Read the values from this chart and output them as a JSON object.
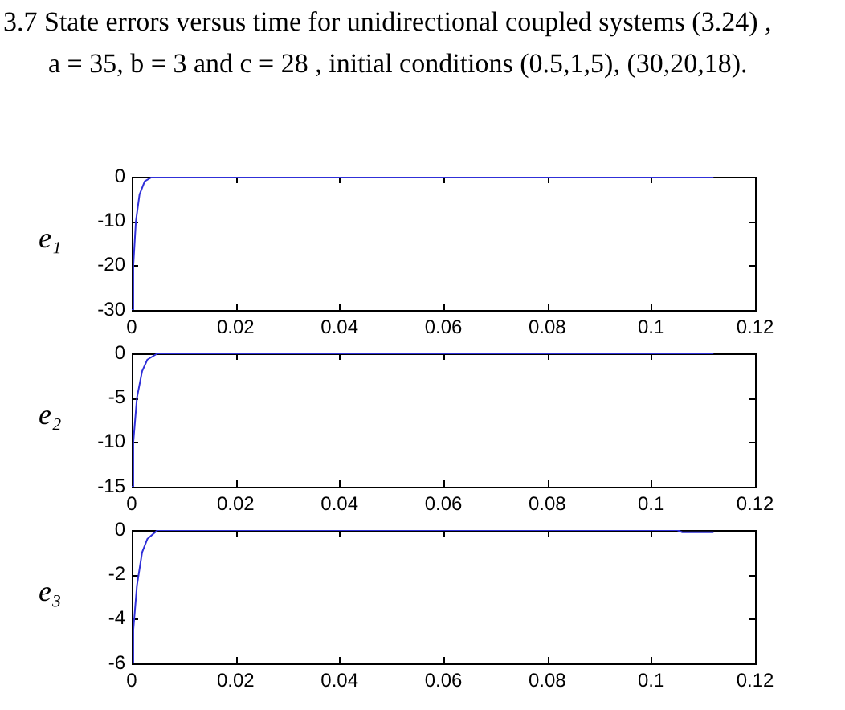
{
  "chart_data": [
    {
      "type": "line",
      "title": "3.7    State errors versus time for unidirectional coupled systems (3.24) ,",
      "subtitle": "a = 35, b = 3   and   c = 28 , initial conditions (0.5,1,5), (30,20,18).",
      "ylabel": "e₁",
      "x": [
        0,
        0.0003,
        0.0008,
        0.0015,
        0.0025,
        0.004,
        0.112
      ],
      "series": [
        {
          "color": "#3030d8",
          "values": [
            -30,
            -20,
            -10,
            -4,
            -1,
            0,
            0
          ]
        }
      ],
      "xlim": [
        0,
        0.12
      ],
      "xticks": [
        0,
        0.02,
        0.04,
        0.06,
        0.08,
        0.1,
        0.12
      ],
      "ylim": [
        -30,
        0
      ],
      "yticks": [
        -30,
        -20,
        -10,
        0
      ],
      "grid": false,
      "legend": false,
      "marker": "none"
    },
    {
      "type": "line",
      "ylabel": "e₂",
      "x": [
        0,
        0.0003,
        0.001,
        0.002,
        0.003,
        0.005,
        0.112
      ],
      "series": [
        {
          "color": "#3030d8",
          "values": [
            -15,
            -10,
            -5,
            -2,
            -0.7,
            0,
            0
          ]
        }
      ],
      "xlim": [
        0,
        0.12
      ],
      "xticks": [
        0,
        0.02,
        0.04,
        0.06,
        0.08,
        0.1,
        0.12
      ],
      "ylim": [
        -15,
        0
      ],
      "yticks": [
        -15,
        -10,
        -5,
        0
      ],
      "grid": false,
      "legend": false,
      "marker": "none"
    },
    {
      "type": "line",
      "ylabel": "e₃",
      "x": [
        0,
        0.0003,
        0.001,
        0.002,
        0.003,
        0.005,
        0.105,
        0.106,
        0.112
      ],
      "series": [
        {
          "color": "#3030d8",
          "values": [
            -6,
            -4.5,
            -2.5,
            -1,
            -0.4,
            0,
            0,
            -0.1,
            -0.1
          ]
        }
      ],
      "xlim": [
        0,
        0.12
      ],
      "xticks": [
        0,
        0.02,
        0.04,
        0.06,
        0.08,
        0.1,
        0.12
      ],
      "ylim": [
        -6,
        0
      ],
      "yticks": [
        -6,
        -4,
        -2,
        0
      ],
      "grid": false,
      "legend": false,
      "marker": "none"
    }
  ]
}
